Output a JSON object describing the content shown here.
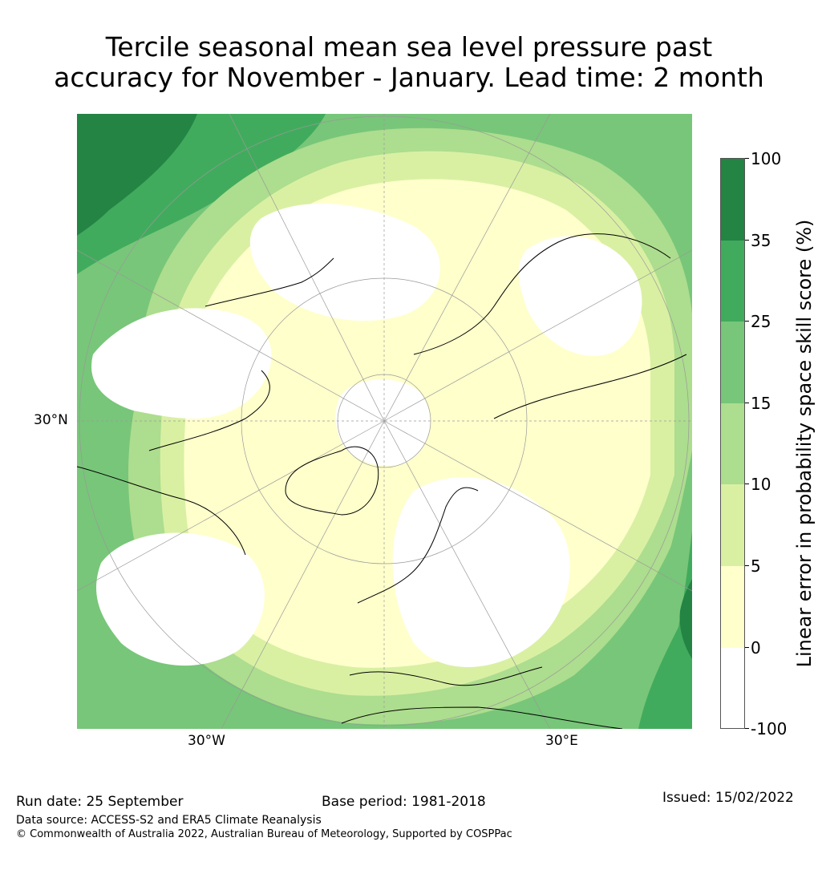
{
  "title": {
    "line1": "Tercile seasonal mean sea level pressure past",
    "line2": "accuracy for November - January. Lead time: 2 month"
  },
  "map": {
    "lat_label": "30°N",
    "lon_labels": [
      "30°W",
      "30°E"
    ],
    "colors": {
      "neg": "#ffffff",
      "c0_5": "#ffffcc",
      "c5_10": "#d9f0a3",
      "c10_15": "#addd8e",
      "c15_25": "#78c679",
      "c25_35": "#41ab5d",
      "c35_100": "#238443",
      "coast": "#000000",
      "grid": "#999999"
    }
  },
  "colorbar": {
    "title": "Linear error in probability space skill score (%)",
    "ticks": [
      "100",
      "35",
      "25",
      "15",
      "10",
      "5",
      "0",
      "-100"
    ],
    "colors": [
      "#238443",
      "#41ab5d",
      "#78c679",
      "#addd8e",
      "#d9f0a3",
      "#ffffcc",
      "#ffffff"
    ]
  },
  "footer": {
    "run_date": "Run date: 25 September",
    "base_period": "Base period: 1981-2018",
    "issued": "Issued: 15/02/2022",
    "data_source": "Data source: ACCESS-S2 and ERA5 Climate Reanalysis",
    "copyright": "© Commonwealth of Australia 2022, Australian Bureau of Meteorology, Supported by COSPPac"
  }
}
